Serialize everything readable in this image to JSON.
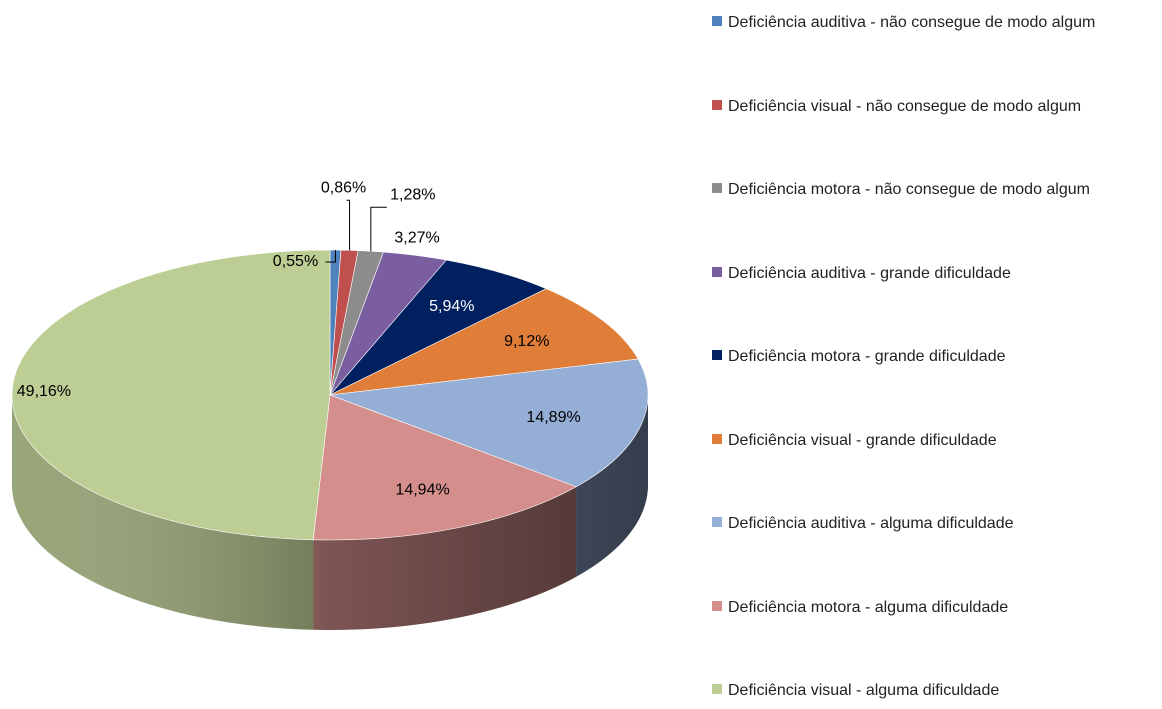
{
  "chart_data": {
    "type": "pie",
    "categories": [
      "Deficiência auditiva - não consegue de modo algum",
      "Deficiência visual - não consegue de modo algum",
      "Deficiência motora - não consegue de modo algum",
      "Deficiência auditiva - grande dificuldade",
      "Deficiência motora - grande dificuldade",
      "Deficiência visual - grande dificuldade",
      "Deficiência auditiva - alguma dificuldade",
      "Deficiência motora - alguma dificuldade",
      "Deficiência visual - alguma dificuldade"
    ],
    "values": [
      0.55,
      0.86,
      1.28,
      3.27,
      5.94,
      9.12,
      14.89,
      14.94,
      49.16
    ],
    "value_labels": [
      "0,55%",
      "0,86%",
      "1,28%",
      "3,27%",
      "5,94%",
      "9,12%",
      "14,89%",
      "14,94%",
      "49,16%"
    ],
    "colors": [
      "#4f81bd",
      "#c0504d",
      "#8c8c8c",
      "#7b5ea0",
      "#002060",
      "#e07e39",
      "#95aed6",
      "#d48f8d",
      "#bcce94"
    ],
    "legend": "right"
  }
}
